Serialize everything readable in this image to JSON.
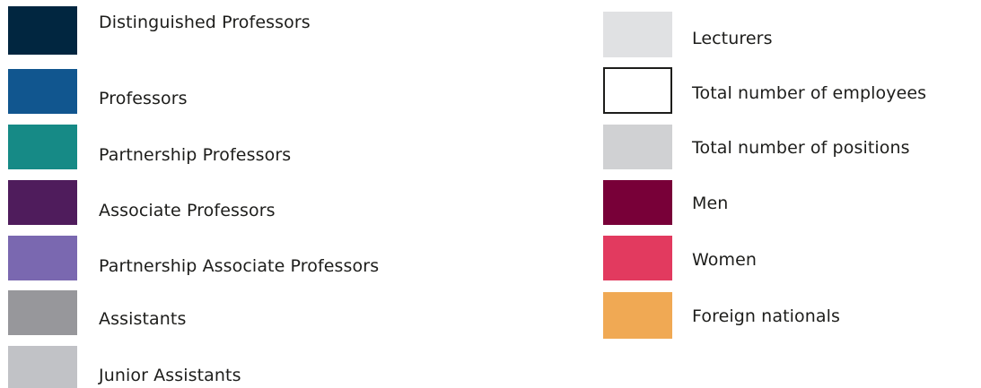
{
  "legend": {
    "left_column": [
      {
        "label": "Distinguished Professors",
        "color": "#012640"
      },
      {
        "label": "Professors",
        "color": "#11568f"
      },
      {
        "label": "Partnership Professors",
        "color": "#168a86"
      },
      {
        "label": "Associate Professors",
        "color": "#4f1c5c"
      },
      {
        "label": "Partnership Associate Professors",
        "color": "#7a68b0"
      },
      {
        "label": "Assistants",
        "color": "#97979b"
      },
      {
        "label": "Junior Assistants",
        "color": "#c1c2c6"
      }
    ],
    "right_column": [
      {
        "label": "Lecturers",
        "color": "#e0e1e3"
      },
      {
        "label": "Total number of employees",
        "color": "#ffffff",
        "outline": "#1d1d1b"
      },
      {
        "label": "Total number of positions",
        "color": "#d0d1d3"
      },
      {
        "label": "Men",
        "color": "#780038"
      },
      {
        "label": "Women",
        "color": "#e23a5f"
      },
      {
        "label": "Foreign nationals",
        "color": "#f0a954"
      }
    ]
  }
}
